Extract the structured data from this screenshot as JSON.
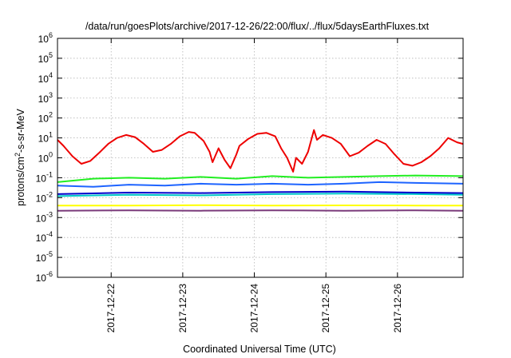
{
  "chart_data": {
    "type": "line",
    "title": "/data/run/goesPlots/archive/2017-12-26/22:00/flux/../flux/5daysEarthFluxes.txt",
    "xlabel": "Coordinated Universal Time (UTC)",
    "ylabel": "protons/cm²-s-sr-MeV",
    "ylabel_parts": {
      "base": "protons/cm",
      "sup": "2",
      "rest": "-s-sr-MeV"
    },
    "y_scale": "log",
    "ylim": [
      1e-06,
      1000000.0
    ],
    "xlim": [
      "2017-12-21T06:00",
      "2017-12-26T22:00"
    ],
    "grid": true,
    "y_ticks": [
      {
        "base": "10",
        "exp": "-6",
        "value": 1e-06
      },
      {
        "base": "10",
        "exp": "-5",
        "value": 1e-05
      },
      {
        "base": "10",
        "exp": "-4",
        "value": 0.0001
      },
      {
        "base": "10",
        "exp": "-3",
        "value": 0.001
      },
      {
        "base": "10",
        "exp": "-2",
        "value": 0.01
      },
      {
        "base": "10",
        "exp": "-1",
        "value": 0.1
      },
      {
        "base": "10",
        "exp": "0",
        "value": 1
      },
      {
        "base": "10",
        "exp": "1",
        "value": 10
      },
      {
        "base": "10",
        "exp": "2",
        "value": 100
      },
      {
        "base": "10",
        "exp": "3",
        "value": 1000
      },
      {
        "base": "10",
        "exp": "4",
        "value": 10000
      },
      {
        "base": "10",
        "exp": "5",
        "value": 100000
      },
      {
        "base": "10",
        "exp": "6",
        "value": 1000000
      }
    ],
    "x_ticks": [
      {
        "label": "2017-12-22",
        "value": "2017-12-22T00:00"
      },
      {
        "label": "2017-12-23",
        "value": "2017-12-23T00:00"
      },
      {
        "label": "2017-12-24",
        "value": "2017-12-24T00:00"
      },
      {
        "label": "2017-12-25",
        "value": "2017-12-25T00:00"
      },
      {
        "label": "2017-12-26",
        "value": "2017-12-26T00:00"
      }
    ],
    "series": [
      {
        "color": "#ee0000",
        "points": [
          [
            "2017-12-21T06:00",
            8
          ],
          [
            "2017-12-21T08:00",
            4
          ],
          [
            "2017-12-21T11:00",
            1.2
          ],
          [
            "2017-12-21T14:00",
            0.5
          ],
          [
            "2017-12-21T17:00",
            0.7
          ],
          [
            "2017-12-21T20:00",
            1.8
          ],
          [
            "2017-12-21T23:00",
            5
          ],
          [
            "2017-12-22T02:00",
            10
          ],
          [
            "2017-12-22T05:00",
            14
          ],
          [
            "2017-12-22T08:00",
            11
          ],
          [
            "2017-12-22T11:00",
            5
          ],
          [
            "2017-12-22T14:00",
            2
          ],
          [
            "2017-12-22T17:00",
            2.5
          ],
          [
            "2017-12-22T20:00",
            5
          ],
          [
            "2017-12-22T23:00",
            12
          ],
          [
            "2017-12-23T02:00",
            20
          ],
          [
            "2017-12-23T04:00",
            18
          ],
          [
            "2017-12-23T07:00",
            7
          ],
          [
            "2017-12-23T09:00",
            2
          ],
          [
            "2017-12-23T10:00",
            0.6
          ],
          [
            "2017-12-23T12:00",
            3
          ],
          [
            "2017-12-23T14:00",
            0.8
          ],
          [
            "2017-12-23T16:00",
            0.3
          ],
          [
            "2017-12-23T18:00",
            1.5
          ],
          [
            "2017-12-23T19:00",
            4
          ],
          [
            "2017-12-23T22:00",
            9
          ],
          [
            "2017-12-24T01:00",
            16
          ],
          [
            "2017-12-24T04:00",
            18
          ],
          [
            "2017-12-24T07:00",
            12
          ],
          [
            "2017-12-24T09:00",
            3
          ],
          [
            "2017-12-24T11:00",
            1
          ],
          [
            "2017-12-24T13:00",
            0.2
          ],
          [
            "2017-12-24T14:00",
            1
          ],
          [
            "2017-12-24T16:00",
            0.5
          ],
          [
            "2017-12-24T18:00",
            2
          ],
          [
            "2017-12-24T20:00",
            25
          ],
          [
            "2017-12-24T21:00",
            8
          ],
          [
            "2017-12-24T23:00",
            14
          ],
          [
            "2017-12-25T02:00",
            10
          ],
          [
            "2017-12-25T05:00",
            5
          ],
          [
            "2017-12-25T08:00",
            1.2
          ],
          [
            "2017-12-25T11:00",
            1.8
          ],
          [
            "2017-12-25T14:00",
            4
          ],
          [
            "2017-12-25T17:00",
            8
          ],
          [
            "2017-12-25T20:00",
            5
          ],
          [
            "2017-12-25T23:00",
            1.5
          ],
          [
            "2017-12-26T02:00",
            0.5
          ],
          [
            "2017-12-26T05:00",
            0.4
          ],
          [
            "2017-12-26T08:00",
            0.6
          ],
          [
            "2017-12-26T11:00",
            1.2
          ],
          [
            "2017-12-26T14:00",
            3
          ],
          [
            "2017-12-26T17:00",
            10
          ],
          [
            "2017-12-26T20:00",
            6
          ],
          [
            "2017-12-26T22:00",
            5
          ]
        ]
      },
      {
        "color": "#22ee22",
        "points": [
          [
            "2017-12-21T06:00",
            0.06
          ],
          [
            "2017-12-21T18:00",
            0.09
          ],
          [
            "2017-12-22T06:00",
            0.1
          ],
          [
            "2017-12-22T18:00",
            0.09
          ],
          [
            "2017-12-23T06:00",
            0.11
          ],
          [
            "2017-12-23T18:00",
            0.09
          ],
          [
            "2017-12-24T06:00",
            0.12
          ],
          [
            "2017-12-24T18:00",
            0.1
          ],
          [
            "2017-12-25T06:00",
            0.11
          ],
          [
            "2017-12-25T18:00",
            0.12
          ],
          [
            "2017-12-26T06:00",
            0.13
          ],
          [
            "2017-12-26T22:00",
            0.12
          ]
        ]
      },
      {
        "color": "#00c8c8",
        "points": [
          [
            "2017-12-21T06:00",
            0.012
          ],
          [
            "2017-12-22T06:00",
            0.014
          ],
          [
            "2017-12-23T06:00",
            0.013
          ],
          [
            "2017-12-24T06:00",
            0.015
          ],
          [
            "2017-12-25T06:00",
            0.016
          ],
          [
            "2017-12-26T06:00",
            0.015
          ],
          [
            "2017-12-26T22:00",
            0.014
          ]
        ]
      },
      {
        "color": "#1e64ff",
        "points": [
          [
            "2017-12-21T06:00",
            0.04
          ],
          [
            "2017-12-21T18:00",
            0.035
          ],
          [
            "2017-12-22T06:00",
            0.045
          ],
          [
            "2017-12-22T18:00",
            0.04
          ],
          [
            "2017-12-23T06:00",
            0.05
          ],
          [
            "2017-12-23T18:00",
            0.045
          ],
          [
            "2017-12-24T06:00",
            0.05
          ],
          [
            "2017-12-24T18:00",
            0.045
          ],
          [
            "2017-12-25T06:00",
            0.05
          ],
          [
            "2017-12-25T18:00",
            0.06
          ],
          [
            "2017-12-26T06:00",
            0.055
          ],
          [
            "2017-12-26T22:00",
            0.05
          ]
        ]
      },
      {
        "color": "#0000cc",
        "points": [
          [
            "2017-12-21T06:00",
            0.015
          ],
          [
            "2017-12-22T06:00",
            0.018
          ],
          [
            "2017-12-23T06:00",
            0.017
          ],
          [
            "2017-12-24T06:00",
            0.019
          ],
          [
            "2017-12-25T06:00",
            0.02
          ],
          [
            "2017-12-26T06:00",
            0.018
          ],
          [
            "2017-12-26T22:00",
            0.017
          ]
        ]
      },
      {
        "color": "#ffff00",
        "points": [
          [
            "2017-12-21T06:00",
            0.004
          ],
          [
            "2017-12-22T06:00",
            0.004
          ],
          [
            "2017-12-23T06:00",
            0.0042
          ],
          [
            "2017-12-24T06:00",
            0.004
          ],
          [
            "2017-12-25T06:00",
            0.0041
          ],
          [
            "2017-12-26T06:00",
            0.004
          ],
          [
            "2017-12-26T22:00",
            0.004
          ]
        ]
      },
      {
        "color": "#7a3a7a",
        "points": [
          [
            "2017-12-21T06:00",
            0.0022
          ],
          [
            "2017-12-22T06:00",
            0.0023
          ],
          [
            "2017-12-23T06:00",
            0.0022
          ],
          [
            "2017-12-24T06:00",
            0.0023
          ],
          [
            "2017-12-25T06:00",
            0.0022
          ],
          [
            "2017-12-26T06:00",
            0.0023
          ],
          [
            "2017-12-26T22:00",
            0.0022
          ]
        ]
      }
    ]
  }
}
